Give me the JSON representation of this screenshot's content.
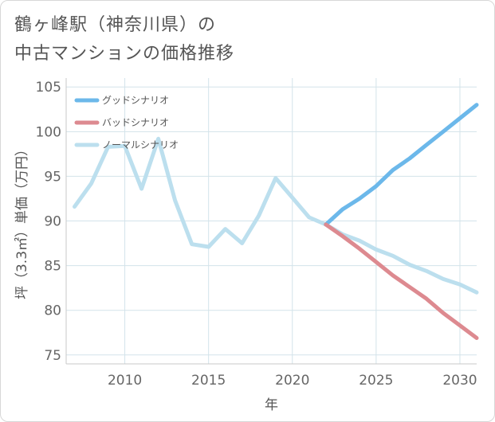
{
  "title_lines": [
    "鶴ヶ峰駅（神奈川県）の",
    "中古マンションの価格推移"
  ],
  "chart_data": {
    "type": "line",
    "xlabel": "年",
    "ylabel": "坪（3.3㎡）単価（万円）",
    "xlim": [
      2006.5,
      2031
    ],
    "ylim": [
      74,
      106
    ],
    "xticks": [
      2010,
      2015,
      2020,
      2025,
      2030
    ],
    "yticks": [
      75,
      80,
      85,
      90,
      95,
      100,
      105
    ],
    "grid": true,
    "legend_position": "top-left",
    "series": [
      {
        "name": "グッドシナリオ",
        "color": "#6cb8ea",
        "x": [
          2022,
          2023,
          2024,
          2025,
          2026,
          2027,
          2028,
          2029,
          2030,
          2031
        ],
        "values": [
          89.6,
          91.3,
          92.5,
          93.9,
          95.7,
          97.0,
          98.5,
          100.0,
          101.5,
          103.0
        ]
      },
      {
        "name": "バッドシナリオ",
        "color": "#dd8a90",
        "x": [
          2022,
          2023,
          2024,
          2025,
          2026,
          2027,
          2028,
          2029,
          2030,
          2031
        ],
        "values": [
          89.6,
          88.3,
          86.9,
          85.4,
          83.9,
          82.6,
          81.3,
          79.7,
          78.3,
          76.9
        ]
      },
      {
        "name": "ノーマルシナリオ",
        "color": "#bcdfee",
        "x": [
          2007,
          2008,
          2009,
          2010,
          2011,
          2012,
          2013,
          2014,
          2015,
          2016,
          2017,
          2018,
          2019,
          2020,
          2021,
          2022,
          2023,
          2024,
          2025,
          2026,
          2027,
          2028,
          2029,
          2030,
          2031
        ],
        "values": [
          91.6,
          94.2,
          98.3,
          98.4,
          93.6,
          99.2,
          92.3,
          87.4,
          87.1,
          89.1,
          87.5,
          90.6,
          94.8,
          92.6,
          90.4,
          89.6,
          88.5,
          87.8,
          86.8,
          86.1,
          85.1,
          84.4,
          83.5,
          82.9,
          82.0
        ]
      }
    ]
  }
}
